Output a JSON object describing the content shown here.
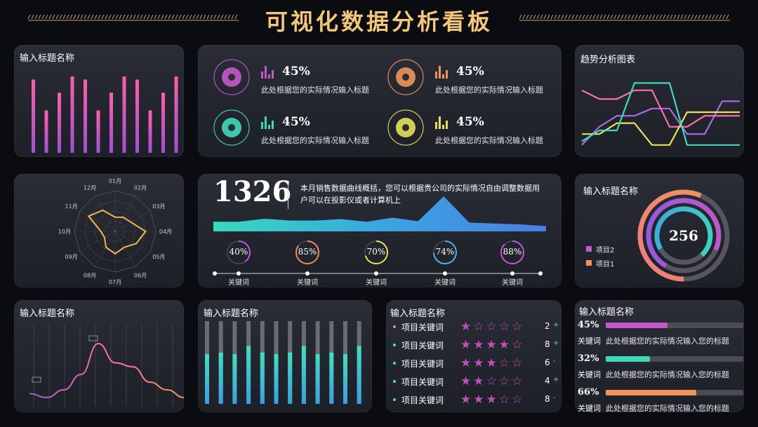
{
  "header": {
    "title": "可视化数据分析看板"
  },
  "panel_bar_top": {
    "title": "输入标题名称"
  },
  "kpis": [
    {
      "pct": "45%",
      "text": "此处根据您的实际情况输入标题",
      "icon": "gear-icon",
      "color": "#c558c8"
    },
    {
      "pct": "45%",
      "text": "此处根据您的实际情况输入标题",
      "icon": "brain-icon",
      "color": "#f0955a"
    },
    {
      "pct": "45%",
      "text": "此处根据您的实际情况输入标题",
      "icon": "coins-icon",
      "color": "#3fd8b8"
    },
    {
      "pct": "45%",
      "text": "此处根据您的实际情况输入标题",
      "icon": "money-icon",
      "color": "#e6e15a"
    }
  ],
  "trend": {
    "title": "趋势分析图表"
  },
  "radar": {
    "labels": [
      "01月",
      "02月",
      "03月",
      "04月",
      "05月",
      "06月",
      "07月",
      "08月",
      "09月",
      "10月",
      "11月",
      "12月"
    ]
  },
  "sales": {
    "number": "1326",
    "desc": "本月销售数据曲线概括，您可以根据贵公司的实际情况自由调整数据用户可以在投影仪或者计算机上",
    "rings": [
      {
        "pct": "40%",
        "value": 0.4,
        "label": "关键词",
        "color": "#b65cd6"
      },
      {
        "pct": "85%",
        "value": 0.85,
        "label": "关键词",
        "color": "#f08a5a"
      },
      {
        "pct": "70%",
        "value": 0.7,
        "label": "关键词",
        "color": "#e6e15a"
      },
      {
        "pct": "74%",
        "value": 0.74,
        "label": "关键词",
        "color": "#4bb4e8"
      },
      {
        "pct": "88%",
        "value": 0.88,
        "label": "关键词",
        "color": "#c15ad0"
      }
    ]
  },
  "donut": {
    "title": "输入标题名称",
    "center": "256",
    "legend": [
      {
        "label": "项目2",
        "color": "#c558c8"
      },
      {
        "label": "项目1",
        "color": "#f0955a"
      }
    ]
  },
  "wave": {
    "title": "输入标题名称"
  },
  "bars2": {
    "title": "输入标题名称"
  },
  "stars": {
    "title": "输入标题名称",
    "rows": [
      {
        "label": "项目关键词",
        "rating": 1,
        "count": "2",
        "sign": "+",
        "dot": "#ff7aa0"
      },
      {
        "label": "项目关键词",
        "rating": 4,
        "count": "8",
        "sign": "+",
        "dot": "#45e0b8"
      },
      {
        "label": "项目关键词",
        "rating": 3,
        "count": "6",
        "sign": "-",
        "dot": "#45e0b8"
      },
      {
        "label": "项目关键词",
        "rating": 2,
        "count": "4",
        "sign": "+",
        "dot": "#45e0b8"
      },
      {
        "label": "项目关键词",
        "rating": 3,
        "count": "8",
        "sign": "-",
        "dot": "#45e0b8"
      }
    ]
  },
  "progress": {
    "title": "输入标题名称",
    "rows": [
      {
        "pct": "45%",
        "value": 0.45,
        "keyword": "关键词",
        "desc": "此处根据您的实际情况输入您的标题",
        "color": "#c558c8"
      },
      {
        "pct": "32%",
        "value": 0.32,
        "keyword": "关键词",
        "desc": "此处根据您的实际情况输入您的标题",
        "color": "#3fd8b8"
      },
      {
        "pct": "66%",
        "value": 0.66,
        "keyword": "关键词",
        "desc": "此处根据您的实际情况输入您的标题",
        "color": "#f0955a"
      }
    ]
  },
  "chart_data": [
    {
      "type": "bar",
      "values": [
        0.95,
        0.55,
        0.78,
        0.99,
        0.95,
        0.55,
        0.78,
        0.99,
        0.95,
        0.55,
        0.78,
        0.99
      ]
    },
    {
      "type": "line",
      "series": [
        {
          "values": [
            0.05,
            0.3,
            0.45,
            0.45,
            0.55,
            0.55,
            0.2,
            0.2,
            0.65,
            0.65
          ]
        },
        {
          "values": [
            0.8,
            0.68,
            0.68,
            0.8,
            0.8,
            0.3,
            0.3,
            0.45,
            0.45,
            0.45
          ]
        },
        {
          "values": [
            0.2,
            0.2,
            0.35,
            0.35,
            0.05,
            0.05,
            0.5,
            0.5,
            0.5,
            0.5
          ]
        },
        {
          "values": [
            0.1,
            0.25,
            0.25,
            0.9,
            0.9,
            0.9,
            0.05,
            0.05,
            0.05,
            0.05
          ]
        }
      ]
    },
    {
      "type": "line",
      "values": [
        0.55,
        0.55,
        0.72,
        0.62,
        0.62,
        0.7,
        0.55,
        0.78,
        0.58,
        1.0,
        0.5,
        0.45,
        0.4,
        0.3
      ]
    },
    {
      "type": "line",
      "values": [
        0.15,
        0.1,
        0.2,
        0.4,
        0.8,
        0.55,
        0.5,
        0.3,
        0.2,
        0.1
      ]
    },
    {
      "type": "bar",
      "values": [
        0.6,
        0.62,
        0.6,
        0.7,
        0.62,
        0.6,
        0.62,
        0.7,
        0.6,
        0.62,
        0.6,
        0.7
      ]
    }
  ]
}
